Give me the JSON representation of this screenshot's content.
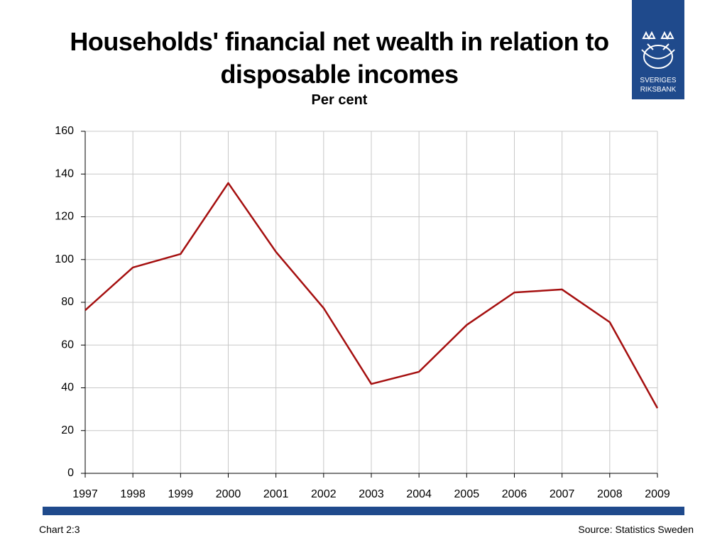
{
  "chart_data": {
    "type": "line",
    "title": "Households' financial net wealth in relation to disposable incomes",
    "subtitle": "Per cent",
    "x": [
      1997,
      1998,
      1999,
      2000,
      2001,
      2002,
      2003,
      2004,
      2005,
      2006,
      2007,
      2008,
      2009
    ],
    "series": [
      {
        "color": "#a50f0f",
        "values": [
          76.3,
          96.3,
          102.6,
          135.8,
          103.6,
          77.3,
          41.8,
          47.5,
          69.4,
          84.6,
          86,
          70.7,
          30.5
        ]
      }
    ],
    "xlim": [
      1997,
      2009
    ],
    "xticks": [
      1997,
      1998,
      1999,
      2000,
      2001,
      2002,
      2003,
      2004,
      2005,
      2006,
      2007,
      2008,
      2009
    ],
    "ylim": [
      0,
      160
    ],
    "yticks": [
      0,
      20,
      40,
      60,
      80,
      100,
      120,
      140,
      160
    ],
    "grid": true
  },
  "footer": {
    "chart_id": "Chart 2:3",
    "source": "Source: Statistics Sweden"
  },
  "logo": {
    "line1": "SVERIGES",
    "line2": "RIKSBANK"
  }
}
